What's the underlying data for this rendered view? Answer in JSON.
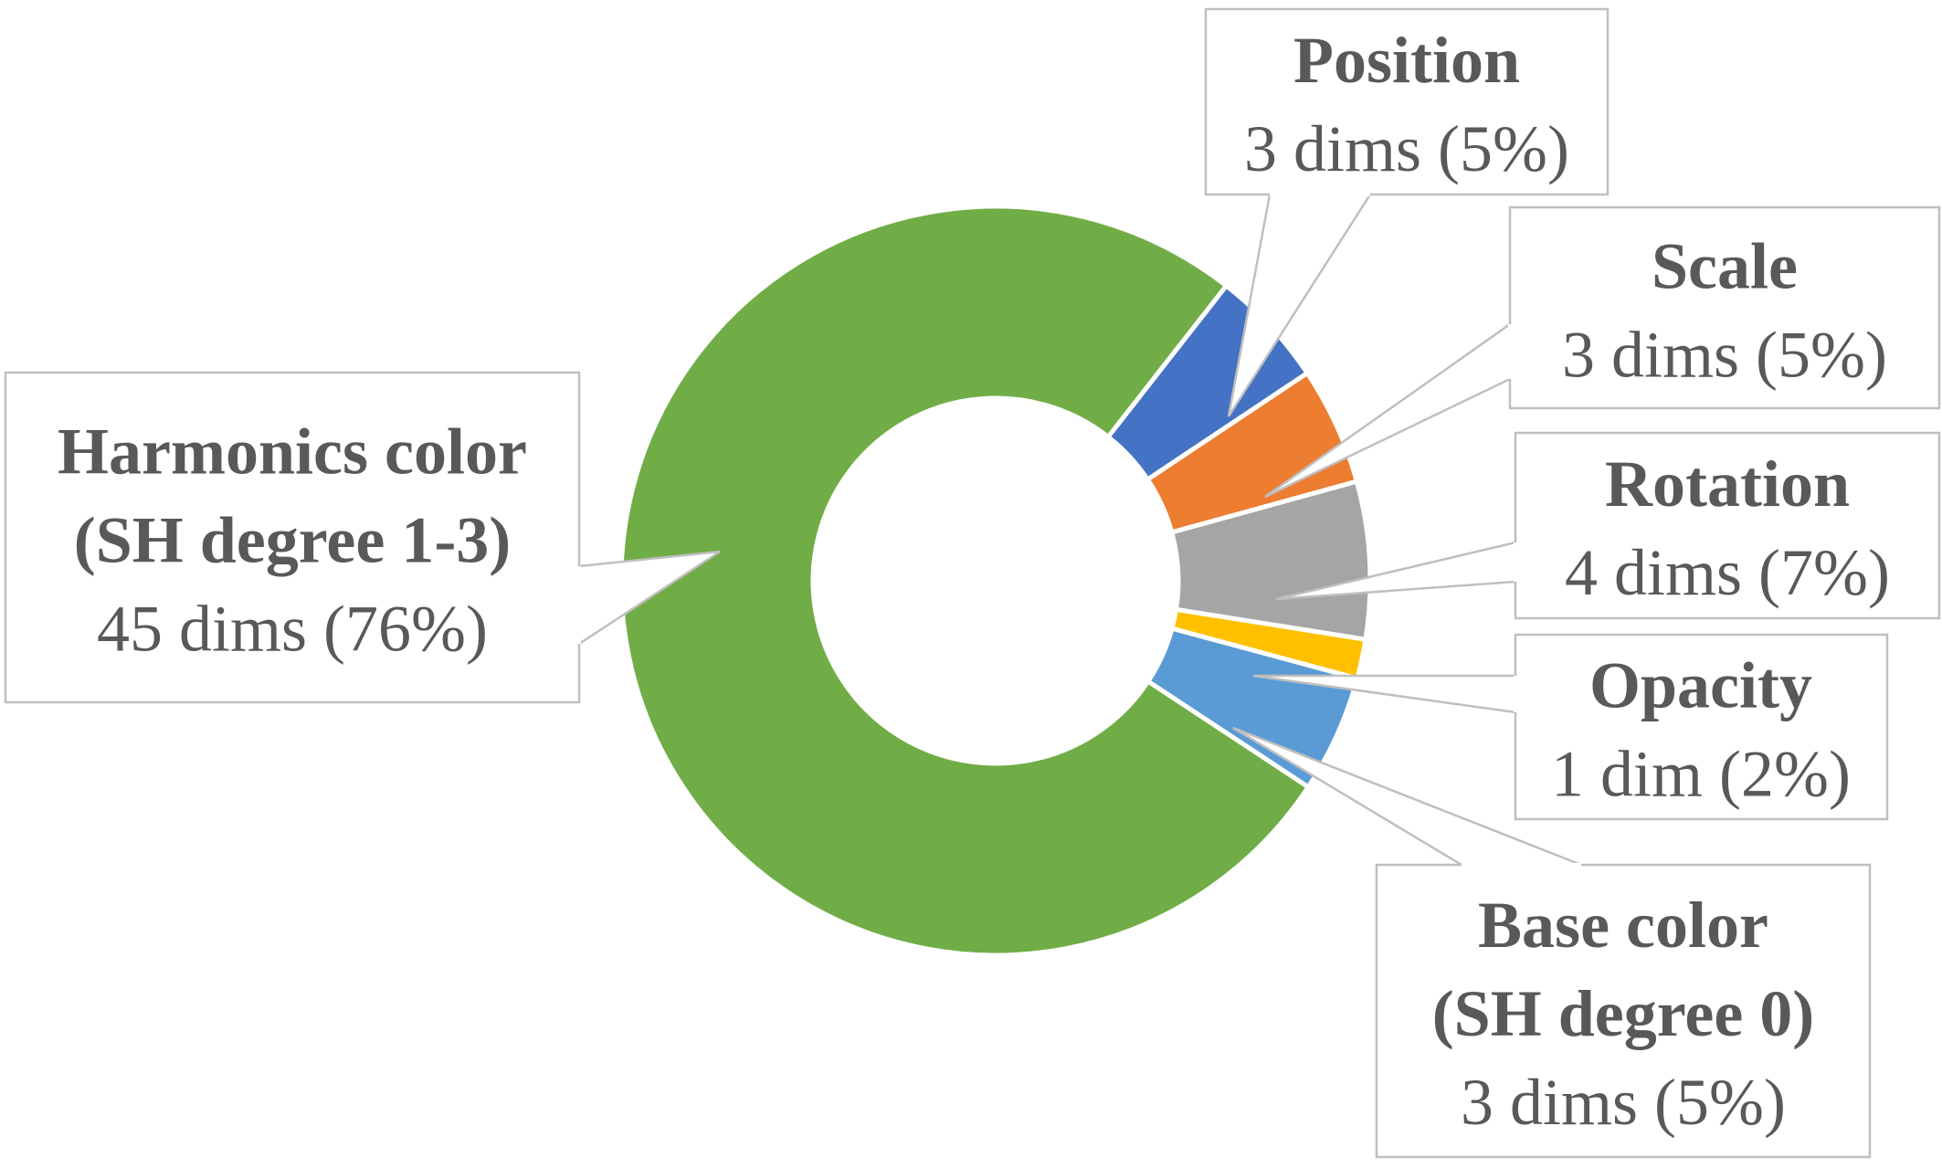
{
  "chart_data": {
    "type": "pie",
    "variant": "doughnut",
    "title": "",
    "legend": "none",
    "data_labels": "callouts",
    "slices": [
      {
        "name": [
          "Position"
        ],
        "value": 3,
        "value_label": "3 dims (5%)",
        "color": "#4472c4"
      },
      {
        "name": [
          "Scale"
        ],
        "value": 3,
        "value_label": "3 dims (5%)",
        "color": "#ed7d31"
      },
      {
        "name": [
          "Rotation"
        ],
        "value": 4,
        "value_label": "4 dims (7%)",
        "color": "#a5a5a5"
      },
      {
        "name": [
          "Opacity"
        ],
        "value": 1,
        "value_label": "1 dim (2%)",
        "color": "#ffc000"
      },
      {
        "name": [
          "Base color",
          "(SH degree 0)"
        ],
        "value": 3,
        "value_label": "3 dims (5%)",
        "color": "#5b9bd5"
      },
      {
        "name": [
          "Harmonics color",
          "(SH degree 1-3)"
        ],
        "value": 45,
        "value_label": "45 dims (76%)",
        "color": "#70ad47"
      }
    ]
  }
}
